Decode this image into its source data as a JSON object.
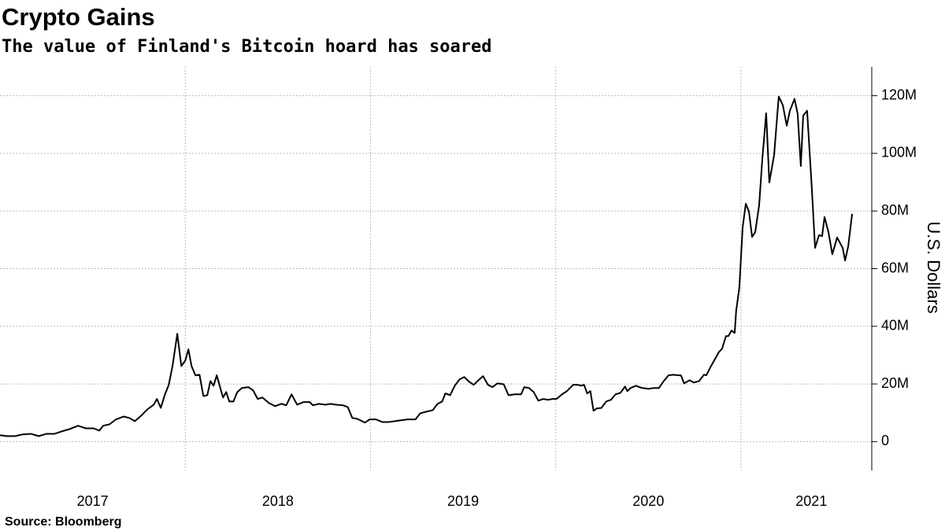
{
  "chart_data": {
    "type": "line",
    "title": "Crypto Gains",
    "subtitle": "The value of Finland's Bitcoin hoard has soared",
    "source": "Source: Bloomberg",
    "y_axis_label": "U.S. Dollars",
    "xlim": [
      2017.0,
      2021.706
    ],
    "xticks": [
      {
        "value": 2017.5,
        "label": "2017"
      },
      {
        "value": 2018.5,
        "label": "2018"
      },
      {
        "value": 2019.5,
        "label": "2019"
      },
      {
        "value": 2020.5,
        "label": "2020"
      },
      {
        "value": 2021.38,
        "label": "2021"
      }
    ],
    "xgrid": [
      2018,
      2019,
      2020,
      2021
    ],
    "ylim": [
      -10000000.0,
      130000000.0
    ],
    "yticks": [
      0,
      {
        "value": 20000000.0,
        "label": "20M"
      },
      {
        "value": 40000000.0,
        "label": "40M"
      },
      {
        "value": 60000000.0,
        "label": "60M"
      },
      {
        "value": 80000000.0,
        "label": "80M"
      },
      {
        "value": 100000000.0,
        "label": "100M"
      },
      {
        "value": 120000000.0,
        "label": "120M"
      }
    ],
    "grid": true,
    "series": [
      {
        "name": "Bitcoin hoard value",
        "color": "#000000",
        "x": [
          2017.0,
          2017.038,
          2017.081,
          2017.123,
          2017.166,
          2017.209,
          2017.251,
          2017.294,
          2017.336,
          2017.379,
          2017.421,
          2017.464,
          2017.506,
          2017.536,
          2017.557,
          2017.591,
          2017.626,
          2017.668,
          2017.698,
          2017.728,
          2017.762,
          2017.796,
          2017.83,
          2017.847,
          2017.868,
          2017.889,
          2017.911,
          2017.932,
          2017.957,
          2017.979,
          2018.0,
          2018.017,
          2018.034,
          2018.055,
          2018.077,
          2018.098,
          2018.119,
          2018.136,
          2018.153,
          2018.17,
          2018.187,
          2018.204,
          2018.221,
          2018.238,
          2018.26,
          2018.281,
          2018.306,
          2018.34,
          2018.366,
          2018.391,
          2018.417,
          2018.451,
          2018.485,
          2018.519,
          2018.545,
          2018.574,
          2018.604,
          2018.638,
          2018.672,
          2018.689,
          2018.723,
          2018.757,
          2018.783,
          2018.817,
          2018.851,
          2018.877,
          2018.902,
          2018.928,
          2018.945,
          2018.97,
          2018.996,
          2019.03,
          2019.064,
          2019.098,
          2019.132,
          2019.166,
          2019.2,
          2019.243,
          2019.268,
          2019.302,
          2019.336,
          2019.362,
          2019.387,
          2019.404,
          2019.43,
          2019.455,
          2019.481,
          2019.506,
          2019.532,
          2019.557,
          2019.583,
          2019.608,
          2019.634,
          2019.659,
          2019.685,
          2019.719,
          2019.745,
          2019.779,
          2019.813,
          2019.83,
          2019.855,
          2019.881,
          2019.906,
          2019.932,
          2019.957,
          2019.983,
          2020.004,
          2020.034,
          2020.06,
          2020.094,
          2020.119,
          2020.136,
          2020.153,
          2020.17,
          2020.187,
          2020.204,
          2020.221,
          2020.247,
          2020.272,
          2020.298,
          2020.323,
          2020.349,
          2020.374,
          2020.387,
          2020.404,
          2020.434,
          2020.451,
          2020.468,
          2020.502,
          2020.528,
          2020.557,
          2020.583,
          2020.609,
          2020.634,
          2020.664,
          2020.676,
          2020.693,
          2020.723,
          2020.745,
          2020.774,
          2020.8,
          2020.813,
          2020.834,
          2020.855,
          2020.881,
          2020.898,
          2020.919,
          2020.932,
          2020.949,
          2020.966,
          2020.974,
          2020.991,
          2021.009,
          2021.026,
          2021.043,
          2021.06,
          2021.077,
          2021.098,
          2021.115,
          2021.136,
          2021.153,
          2021.179,
          2021.196,
          2021.204,
          2021.226,
          2021.247,
          2021.264,
          2021.289,
          2021.306,
          2021.323,
          2021.336,
          2021.357,
          2021.383,
          2021.4,
          2021.421,
          2021.438,
          2021.451,
          2021.472,
          2021.493,
          2021.519,
          2021.549,
          2021.562,
          2021.579,
          2021.6
        ],
        "values": [
          2200000.0,
          1900000.0,
          1900000.0,
          2500000.0,
          2700000.0,
          1900000.0,
          2700000.0,
          2700000.0,
          3600000.0,
          4400000.0,
          5500000.0,
          4600000.0,
          4600000.0,
          3800000.0,
          5500000.0,
          6000000.0,
          7700000.0,
          8700000.0,
          8200000.0,
          7100000.0,
          9000000.0,
          11200000.0,
          12800000.0,
          14800000.0,
          11700000.0,
          16100000.0,
          19700000.0,
          26500000.0,
          37400000.0,
          26200000.0,
          28100000.0,
          32000000.0,
          26200000.0,
          23000000.0,
          23200000.0,
          15800000.0,
          16100000.0,
          21000000.0,
          19400000.0,
          23000000.0,
          19100000.0,
          15300000.0,
          17200000.0,
          13900000.0,
          13900000.0,
          17200000.0,
          18600000.0,
          18900000.0,
          17800000.0,
          14800000.0,
          15300000.0,
          13400000.0,
          12300000.0,
          13100000.0,
          12600000.0,
          16400000.0,
          12800000.0,
          13700000.0,
          13700000.0,
          12600000.0,
          13100000.0,
          12800000.0,
          13100000.0,
          12800000.0,
          12600000.0,
          12000000.0,
          8200000.0,
          7900000.0,
          7400000.0,
          6600000.0,
          7700000.0,
          7700000.0,
          6800000.0,
          6800000.0,
          7100000.0,
          7400000.0,
          7700000.0,
          7700000.0,
          9800000.0,
          10400000.0,
          10900000.0,
          13100000.0,
          13900000.0,
          16700000.0,
          16100000.0,
          19400000.0,
          21600000.0,
          22400000.0,
          20800000.0,
          19700000.0,
          21300000.0,
          22700000.0,
          19700000.0,
          18900000.0,
          20200000.0,
          19900000.0,
          16100000.0,
          16400000.0,
          16400000.0,
          18900000.0,
          18600000.0,
          17200000.0,
          14200000.0,
          14800000.0,
          14500000.0,
          14800000.0,
          14800000.0,
          16400000.0,
          17500000.0,
          19700000.0,
          19700000.0,
          19400000.0,
          19700000.0,
          16700000.0,
          17500000.0,
          10700000.0,
          11500000.0,
          11700000.0,
          13900000.0,
          14500000.0,
          16400000.0,
          16900000.0,
          19100000.0,
          17500000.0,
          18600000.0,
          19400000.0,
          18900000.0,
          18600000.0,
          18300000.0,
          18600000.0,
          18600000.0,
          21000000.0,
          23000000.0,
          23200000.0,
          23000000.0,
          23000000.0,
          20200000.0,
          21300000.0,
          20500000.0,
          21000000.0,
          23200000.0,
          23000000.0,
          25700000.0,
          28100000.0,
          31100000.0,
          32200000.0,
          36600000.0,
          36600000.0,
          38500000.0,
          37700000.0,
          45400000.0,
          53300000.0,
          74300000.0,
          82500000.0,
          79800000.0,
          71000000.0,
          72700000.0,
          82000000.0,
          97800000.0,
          113900000.0,
          89900000.0,
          99500000.0,
          113400000.0,
          119700000.0,
          116700000.0,
          109600000.0,
          114800000.0,
          118900000.0,
          113700000.0,
          95600000.0,
          113100000.0,
          114800000.0,
          87200000.0,
          67200000.0,
          71600000.0,
          71300000.0,
          77900000.0,
          72700000.0,
          65000000.0,
          70800000.0,
          67200000.0,
          62800000.0,
          67800000.0,
          79000000.0
        ]
      }
    ]
  }
}
